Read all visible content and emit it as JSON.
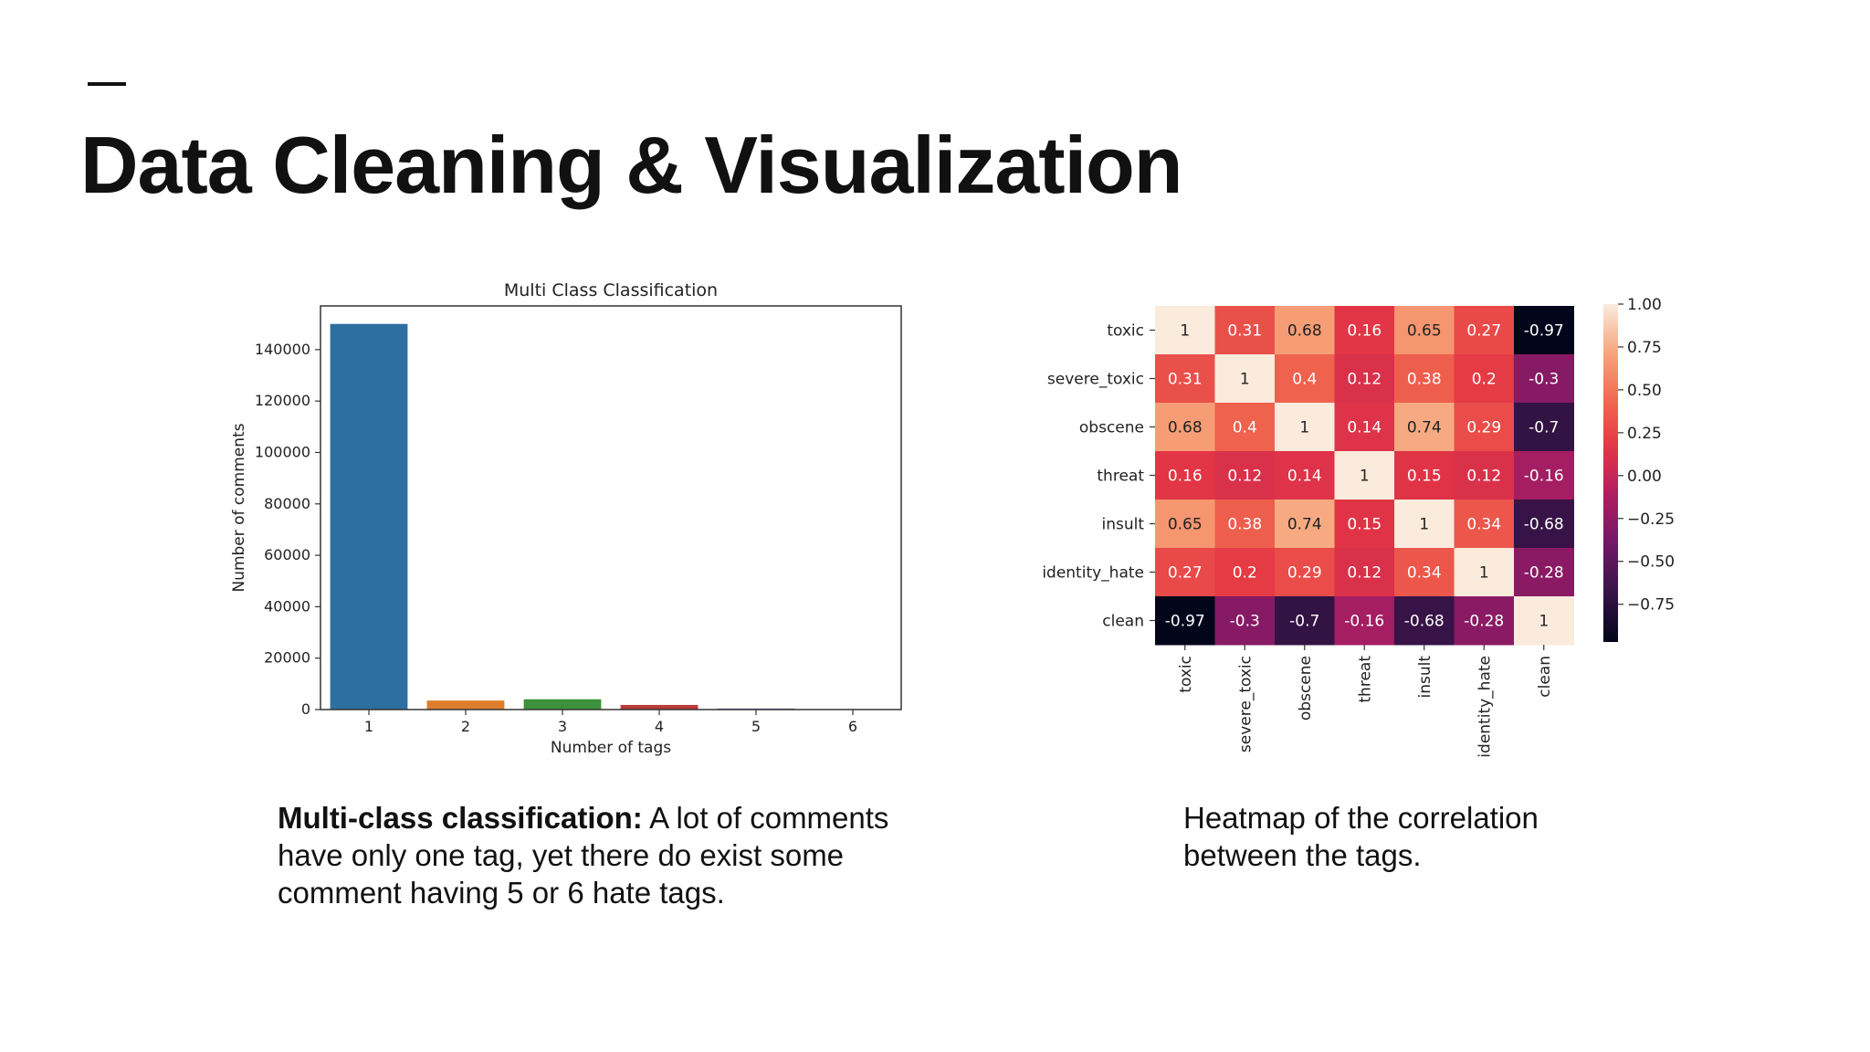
{
  "slide": {
    "title": "Data Cleaning & Visualization",
    "captions": {
      "left_bold": "Multi-class classification:",
      "left_text": " A lot of comments have only one tag, yet there do exist some comment having 5 or 6 hate tags.",
      "right_text": "Heatmap of the correlation between the tags."
    }
  },
  "chart_data": [
    {
      "type": "bar",
      "title": "Multi Class Classification",
      "xlabel": "Number of tags",
      "ylabel": "Number of comments",
      "categories": [
        "1",
        "2",
        "3",
        "4",
        "5",
        "6"
      ],
      "values": [
        150000,
        3500,
        4000,
        1800,
        400,
        30
      ],
      "colors": [
        "#2e6fa2",
        "#dd7d2b",
        "#3b923b",
        "#bc3a3b",
        "#8466ad",
        "#8b5a4c"
      ],
      "ylim": [
        0,
        157000
      ],
      "yticks": [
        0,
        20000,
        40000,
        60000,
        80000,
        100000,
        120000,
        140000
      ]
    },
    {
      "type": "heatmap",
      "labels": [
        "toxic",
        "severe_toxic",
        "obscene",
        "threat",
        "insult",
        "identity_hate",
        "clean"
      ],
      "matrix": [
        [
          1,
          0.31,
          0.68,
          0.16,
          0.65,
          0.27,
          -0.97
        ],
        [
          0.31,
          1,
          0.4,
          0.12,
          0.38,
          0.2,
          -0.3
        ],
        [
          0.68,
          0.4,
          1,
          0.14,
          0.74,
          0.29,
          -0.7
        ],
        [
          0.16,
          0.12,
          0.14,
          1,
          0.15,
          0.12,
          -0.16
        ],
        [
          0.65,
          0.38,
          0.74,
          0.15,
          1,
          0.34,
          -0.68
        ],
        [
          0.27,
          0.2,
          0.29,
          0.12,
          0.34,
          1,
          -0.28
        ],
        [
          -0.97,
          -0.3,
          -0.7,
          -0.16,
          -0.68,
          -0.28,
          1
        ]
      ],
      "vmin": -0.97,
      "vmax": 1,
      "colorbar_ticks": [
        "1.00",
        "0.75",
        "0.50",
        "0.25",
        "0.00",
        "−0.25",
        "−0.50",
        "−0.75"
      ],
      "colorbar_tick_values": [
        1,
        0.75,
        0.5,
        0.25,
        0,
        -0.25,
        -0.5,
        -0.75
      ]
    }
  ]
}
